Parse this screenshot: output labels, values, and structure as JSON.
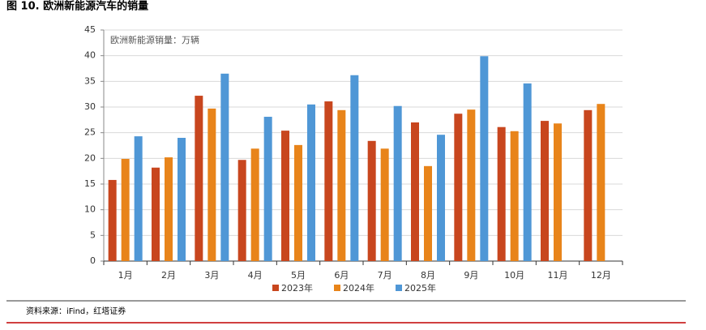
{
  "title": "图 10. 欧洲新能源汽车的销量",
  "source": "资料来源：iFind，红塔证券",
  "chart_data": {
    "type": "bar",
    "annotation": "欧洲新能源销量：万辆",
    "categories": [
      "1月",
      "2月",
      "3月",
      "4月",
      "5月",
      "6月",
      "7月",
      "8月",
      "9月",
      "10月",
      "11月",
      "12月"
    ],
    "series": [
      {
        "name": "2023年",
        "color": "#c8461e",
        "values": [
          15.8,
          18.2,
          32.2,
          19.7,
          25.4,
          31.1,
          23.4,
          27.0,
          28.7,
          26.1,
          27.3,
          29.4
        ]
      },
      {
        "name": "2024年",
        "color": "#e8841a",
        "values": [
          19.9,
          20.2,
          29.7,
          21.9,
          22.6,
          29.4,
          21.9,
          18.5,
          29.5,
          25.3,
          26.8,
          30.6
        ]
      },
      {
        "name": "2025年",
        "color": "#4f97d6",
        "values": [
          24.3,
          24.0,
          36.5,
          28.1,
          30.5,
          36.2,
          30.2,
          24.6,
          39.9,
          34.6,
          null,
          null
        ]
      }
    ],
    "ylim": [
      0,
      45
    ],
    "yticks": [
      0,
      5,
      10,
      15,
      20,
      25,
      30,
      35,
      40,
      45
    ],
    "grid": true
  }
}
